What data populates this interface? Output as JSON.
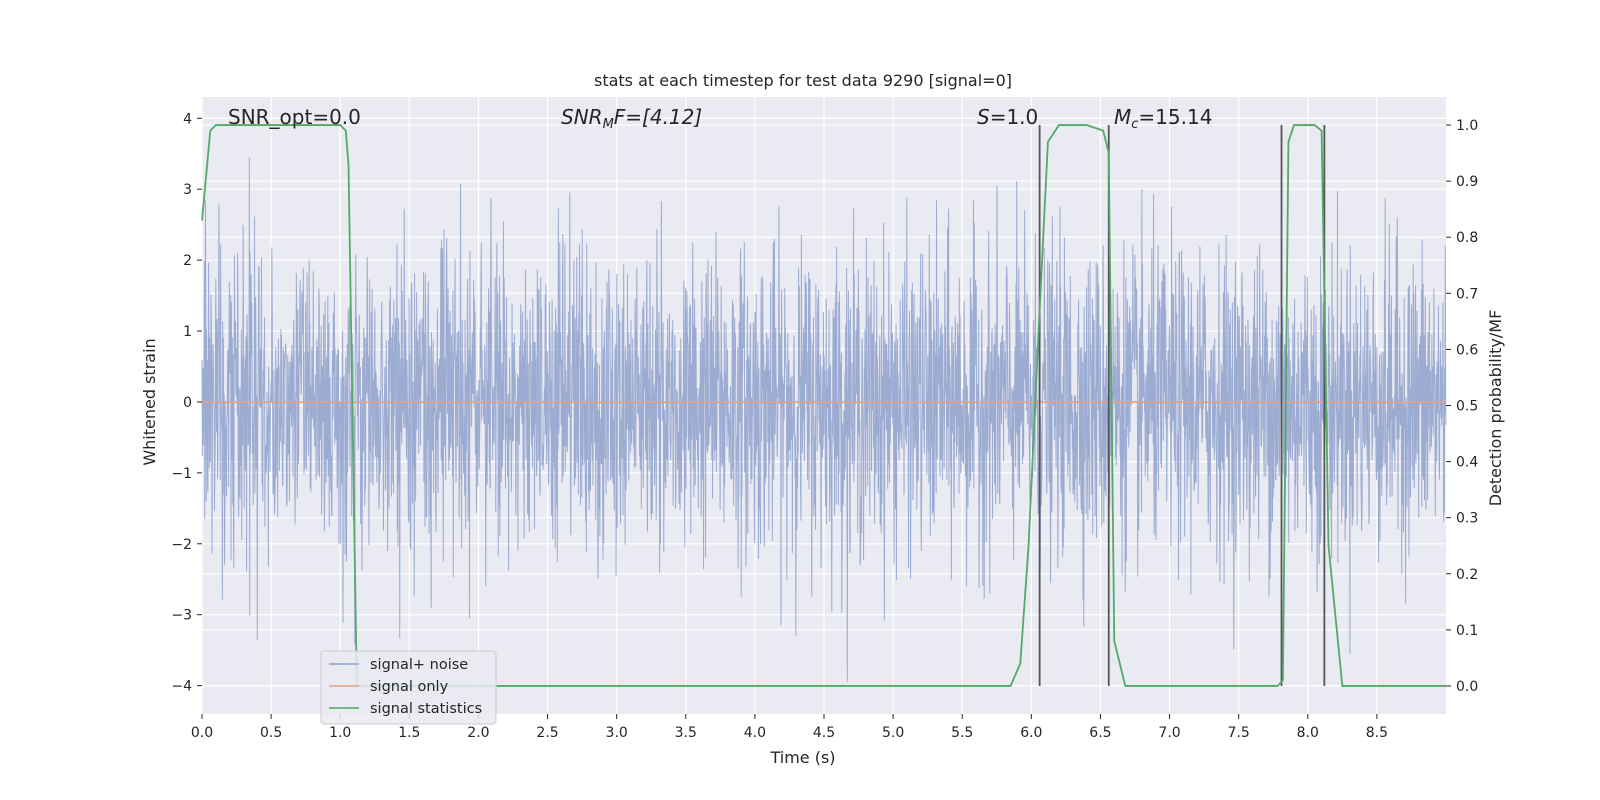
{
  "chart_data": {
    "type": "line",
    "title": "stats at each timestep for test data 9290 [signal=0]",
    "xlabel": "Time (s)",
    "ylabel_left": "Whitened strain",
    "ylabel_right": "Detection probability/MF",
    "xlim": [
      0.0,
      9.0
    ],
    "ylim_left": [
      -4.4,
      4.3
    ],
    "ylim_right": [
      -0.05,
      1.05
    ],
    "xticks": [
      "0.0",
      "0.5",
      "1.0",
      "1.5",
      "2.0",
      "2.5",
      "3.0",
      "3.5",
      "4.0",
      "4.5",
      "5.0",
      "5.5",
      "6.0",
      "6.5",
      "7.0",
      "7.5",
      "8.0",
      "8.5"
    ],
    "yticks_left": [
      "4",
      "3",
      "2",
      "1",
      "0",
      "−1",
      "−2",
      "−3",
      "−4"
    ],
    "yticks_right": [
      "1.0",
      "0.9",
      "0.8",
      "0.7",
      "0.6",
      "0.5",
      "0.4",
      "0.3",
      "0.2",
      "0.1",
      "0.0"
    ],
    "grid": true,
    "legend_placement": "lower-left",
    "annotations": {
      "snr_opt": "SNR_opt=0.0",
      "snr_mf_main": "SNR",
      "snr_mf_sub": "M",
      "snr_mf_rest": "F=[4.12]",
      "s_var": "S",
      "s_rest": "=1.0",
      "mc_var": "M",
      "mc_sub": "c",
      "mc_rest": "=15.14"
    },
    "series": [
      {
        "name": "signal+ noise",
        "color": "#8da0cb",
        "axis": "left",
        "description_range": [
          -4.0,
          3.7
        ]
      },
      {
        "name": "signal only",
        "color": "#e8a083",
        "axis": "left",
        "x": [
          0.0,
          9.0
        ],
        "y": [
          0.0,
          0.0
        ]
      },
      {
        "name": "signal statistics",
        "color": "#55a868",
        "axis": "right",
        "x": [
          0.0,
          0.06,
          0.1,
          0.2,
          0.5,
          1.0,
          1.04,
          1.06,
          1.12,
          1.2,
          2.0,
          3.0,
          4.0,
          5.0,
          5.85,
          5.92,
          5.98,
          6.05,
          6.12,
          6.2,
          6.4,
          6.52,
          6.56,
          6.6,
          6.68,
          7.0,
          7.5,
          7.78,
          7.82,
          7.86,
          7.9,
          8.0,
          8.05,
          8.1,
          8.15,
          8.25,
          8.5,
          9.0
        ],
        "y": [
          0.83,
          0.99,
          1.0,
          1.0,
          1.0,
          1.0,
          0.99,
          0.93,
          0.0,
          0.0,
          0.0,
          0.0,
          0.0,
          0.0,
          0.0,
          0.04,
          0.25,
          0.62,
          0.97,
          1.0,
          1.0,
          0.99,
          0.95,
          0.08,
          0.0,
          0.0,
          0.0,
          0.0,
          0.01,
          0.97,
          1.0,
          1.0,
          1.0,
          0.99,
          0.25,
          0.0,
          0.0,
          0.0
        ]
      }
    ],
    "vertical_markers": [
      {
        "x": 6.06,
        "ymin": 0.0,
        "ymax": 1.0,
        "color": "#555555"
      },
      {
        "x": 6.56,
        "ymin": 0.0,
        "ymax": 1.0,
        "color": "#555555"
      },
      {
        "x": 7.81,
        "ymin": 0.0,
        "ymax": 1.0,
        "color": "#555555"
      },
      {
        "x": 8.12,
        "ymin": 0.0,
        "ymax": 1.0,
        "color": "#555555"
      }
    ],
    "colors": {
      "plot_background": "#eaeaf2",
      "grid": "#ffffff"
    }
  }
}
